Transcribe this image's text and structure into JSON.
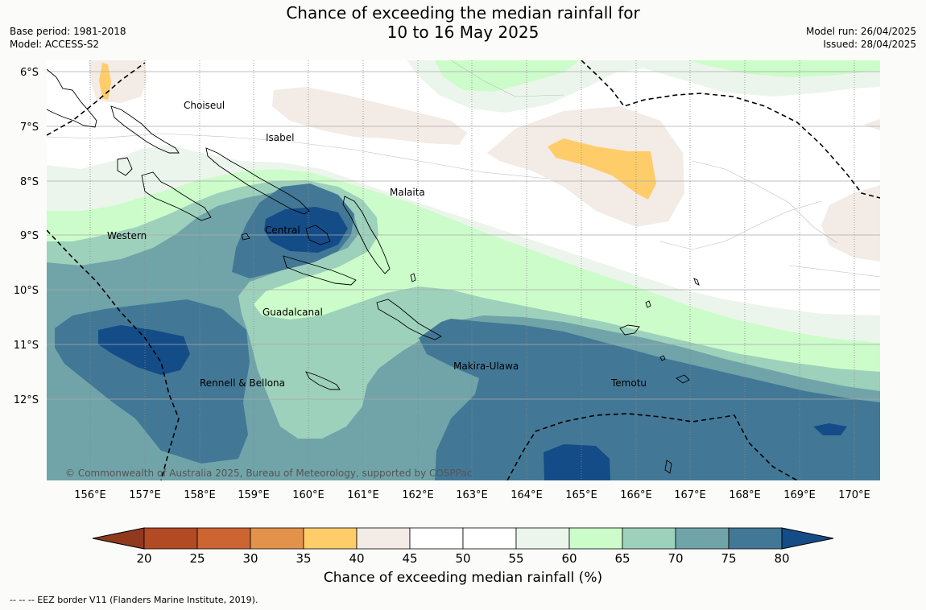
{
  "title_line1": "Chance of exceeding the median rainfall for",
  "title_line2": "10 to 16 May 2025",
  "meta_left": [
    "Base period: 1981-2018",
    "Model: ACCESS-S2"
  ],
  "meta_right": [
    "Model run: 26/04/2025",
    "Issued: 28/04/2025"
  ],
  "lat_labels": [
    "6°S",
    "7°S",
    "8°S",
    "9°S",
    "10°S",
    "11°S",
    "12°S"
  ],
  "lon_labels": [
    "156°E",
    "157°E",
    "158°E",
    "159°E",
    "160°E",
    "161°E",
    "162°E",
    "163°E",
    "164°E",
    "165°E",
    "166°E",
    "167°E",
    "168°E",
    "169°E",
    "170°E"
  ],
  "regions": [
    "Choiseul",
    "Isabel",
    "Malaita",
    "Western",
    "Central",
    "Guadalcanal",
    "Makira-Ulawa",
    "Rennell & Bellona",
    "Temotu"
  ],
  "copyright": "© Commonwealth of Australia 2025, Bureau of Meteorology, supported by COSPPac",
  "colorbar": {
    "ticks": [
      "20",
      "25",
      "30",
      "35",
      "40",
      "45",
      "50",
      "55",
      "60",
      "65",
      "70",
      "75",
      "80"
    ],
    "colors": [
      "#b24a24",
      "#cc6531",
      "#e3924b",
      "#fecd6a",
      "#f3ebe5",
      "#ffffff",
      "#ffffff",
      "#ecf5ec",
      "#ccfcca",
      "#9dd1bb",
      "#70a4a9",
      "#427896"
    ],
    "low_extend_color": "#91391e",
    "high_extend_color": "#144c88",
    "label": "Chance of exceeding median rainfall (%)"
  },
  "footnote": "--  --  -- EEZ border V11 (Flanders Marine Institute, 2019)."
}
